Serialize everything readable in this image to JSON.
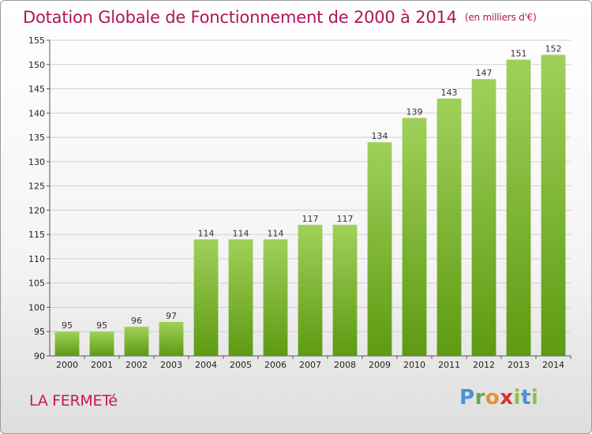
{
  "header": {
    "title": "Dotation Globale de Fonctionnement de 2000 à 2014",
    "unit": "(en milliers d'€)"
  },
  "footer": {
    "commune": "LA FERMETé",
    "logo": {
      "letters": [
        "P",
        "r",
        "o",
        "x",
        "i",
        "t",
        "i"
      ],
      "colors": [
        "#4a90d9",
        "#6aa84f",
        "#e69138",
        "#d9342b",
        "#8bc34a",
        "#4a90d9",
        "#8bc34a"
      ]
    }
  },
  "chart_data": {
    "type": "bar",
    "categories": [
      "2000",
      "2001",
      "2002",
      "2003",
      "2004",
      "2005",
      "2006",
      "2007",
      "2008",
      "2009",
      "2010",
      "2011",
      "2012",
      "2013",
      "2014"
    ],
    "values": [
      95,
      95,
      96,
      97,
      114,
      114,
      114,
      117,
      117,
      134,
      139,
      143,
      147,
      151,
      152
    ],
    "ylim": [
      90,
      155
    ],
    "yticks": [
      90,
      95,
      100,
      105,
      110,
      115,
      120,
      125,
      130,
      135,
      140,
      145,
      150,
      155
    ],
    "grid": true,
    "colors": {
      "bar_top": "#9fd15a",
      "bar_bottom": "#5e9a12",
      "grid": "#d0d0d0"
    }
  }
}
